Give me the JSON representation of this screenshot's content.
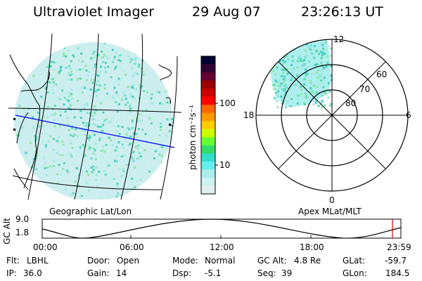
{
  "header": {
    "title": "Ultraviolet Imager",
    "date": "29 Aug 07",
    "time": "23:26:13 UT"
  },
  "colorbar": {
    "label": "photon cm⁻²s⁻¹",
    "ticks": [
      "100",
      "10"
    ],
    "colors": [
      "#000033",
      "#330033",
      "#660033",
      "#990000",
      "#cc0000",
      "#ff0000",
      "#ff6600",
      "#ff9900",
      "#ffcc00",
      "#ccff00",
      "#66ff33",
      "#33dd66",
      "#33ddcc",
      "#66eeee",
      "#aaeeee",
      "#ccf2f2",
      "#e0f0f0"
    ]
  },
  "left_map": {
    "label": "Geographic Lat/Lon"
  },
  "right_map": {
    "label": "Apex MLat/MLT",
    "clock_labels": {
      "top": "12",
      "left": "18",
      "right": "6",
      "bottom": "0"
    },
    "ring_labels": [
      "60",
      "70",
      "80"
    ]
  },
  "altitude_plot": {
    "ylabel": "GC Alt",
    "yticks": [
      "9.0",
      "1.8"
    ],
    "xticks": [
      "00:00",
      "06:00",
      "12:00",
      "18:00",
      "23:59"
    ]
  },
  "footer": {
    "flt_label": "Flt:",
    "flt_value": "LBHL",
    "ip_label": "IP:",
    "ip_value": "36.0",
    "door_label": "Door:",
    "door_value": "Open",
    "gain_label": "Gain:",
    "gain_value": "14",
    "mode_label": "Mode:",
    "mode_value": "Normal",
    "dsp_label": "Dsp:",
    "dsp_value": "-5.1",
    "gcalt_label": "GC Alt:",
    "gcalt_value": "4.8 Re",
    "seq_label": "Seq:",
    "seq_value": "39",
    "glat_label": "GLat:",
    "glat_value": "-59.7",
    "glon_label": "GLon:",
    "glon_value": "184.5"
  }
}
